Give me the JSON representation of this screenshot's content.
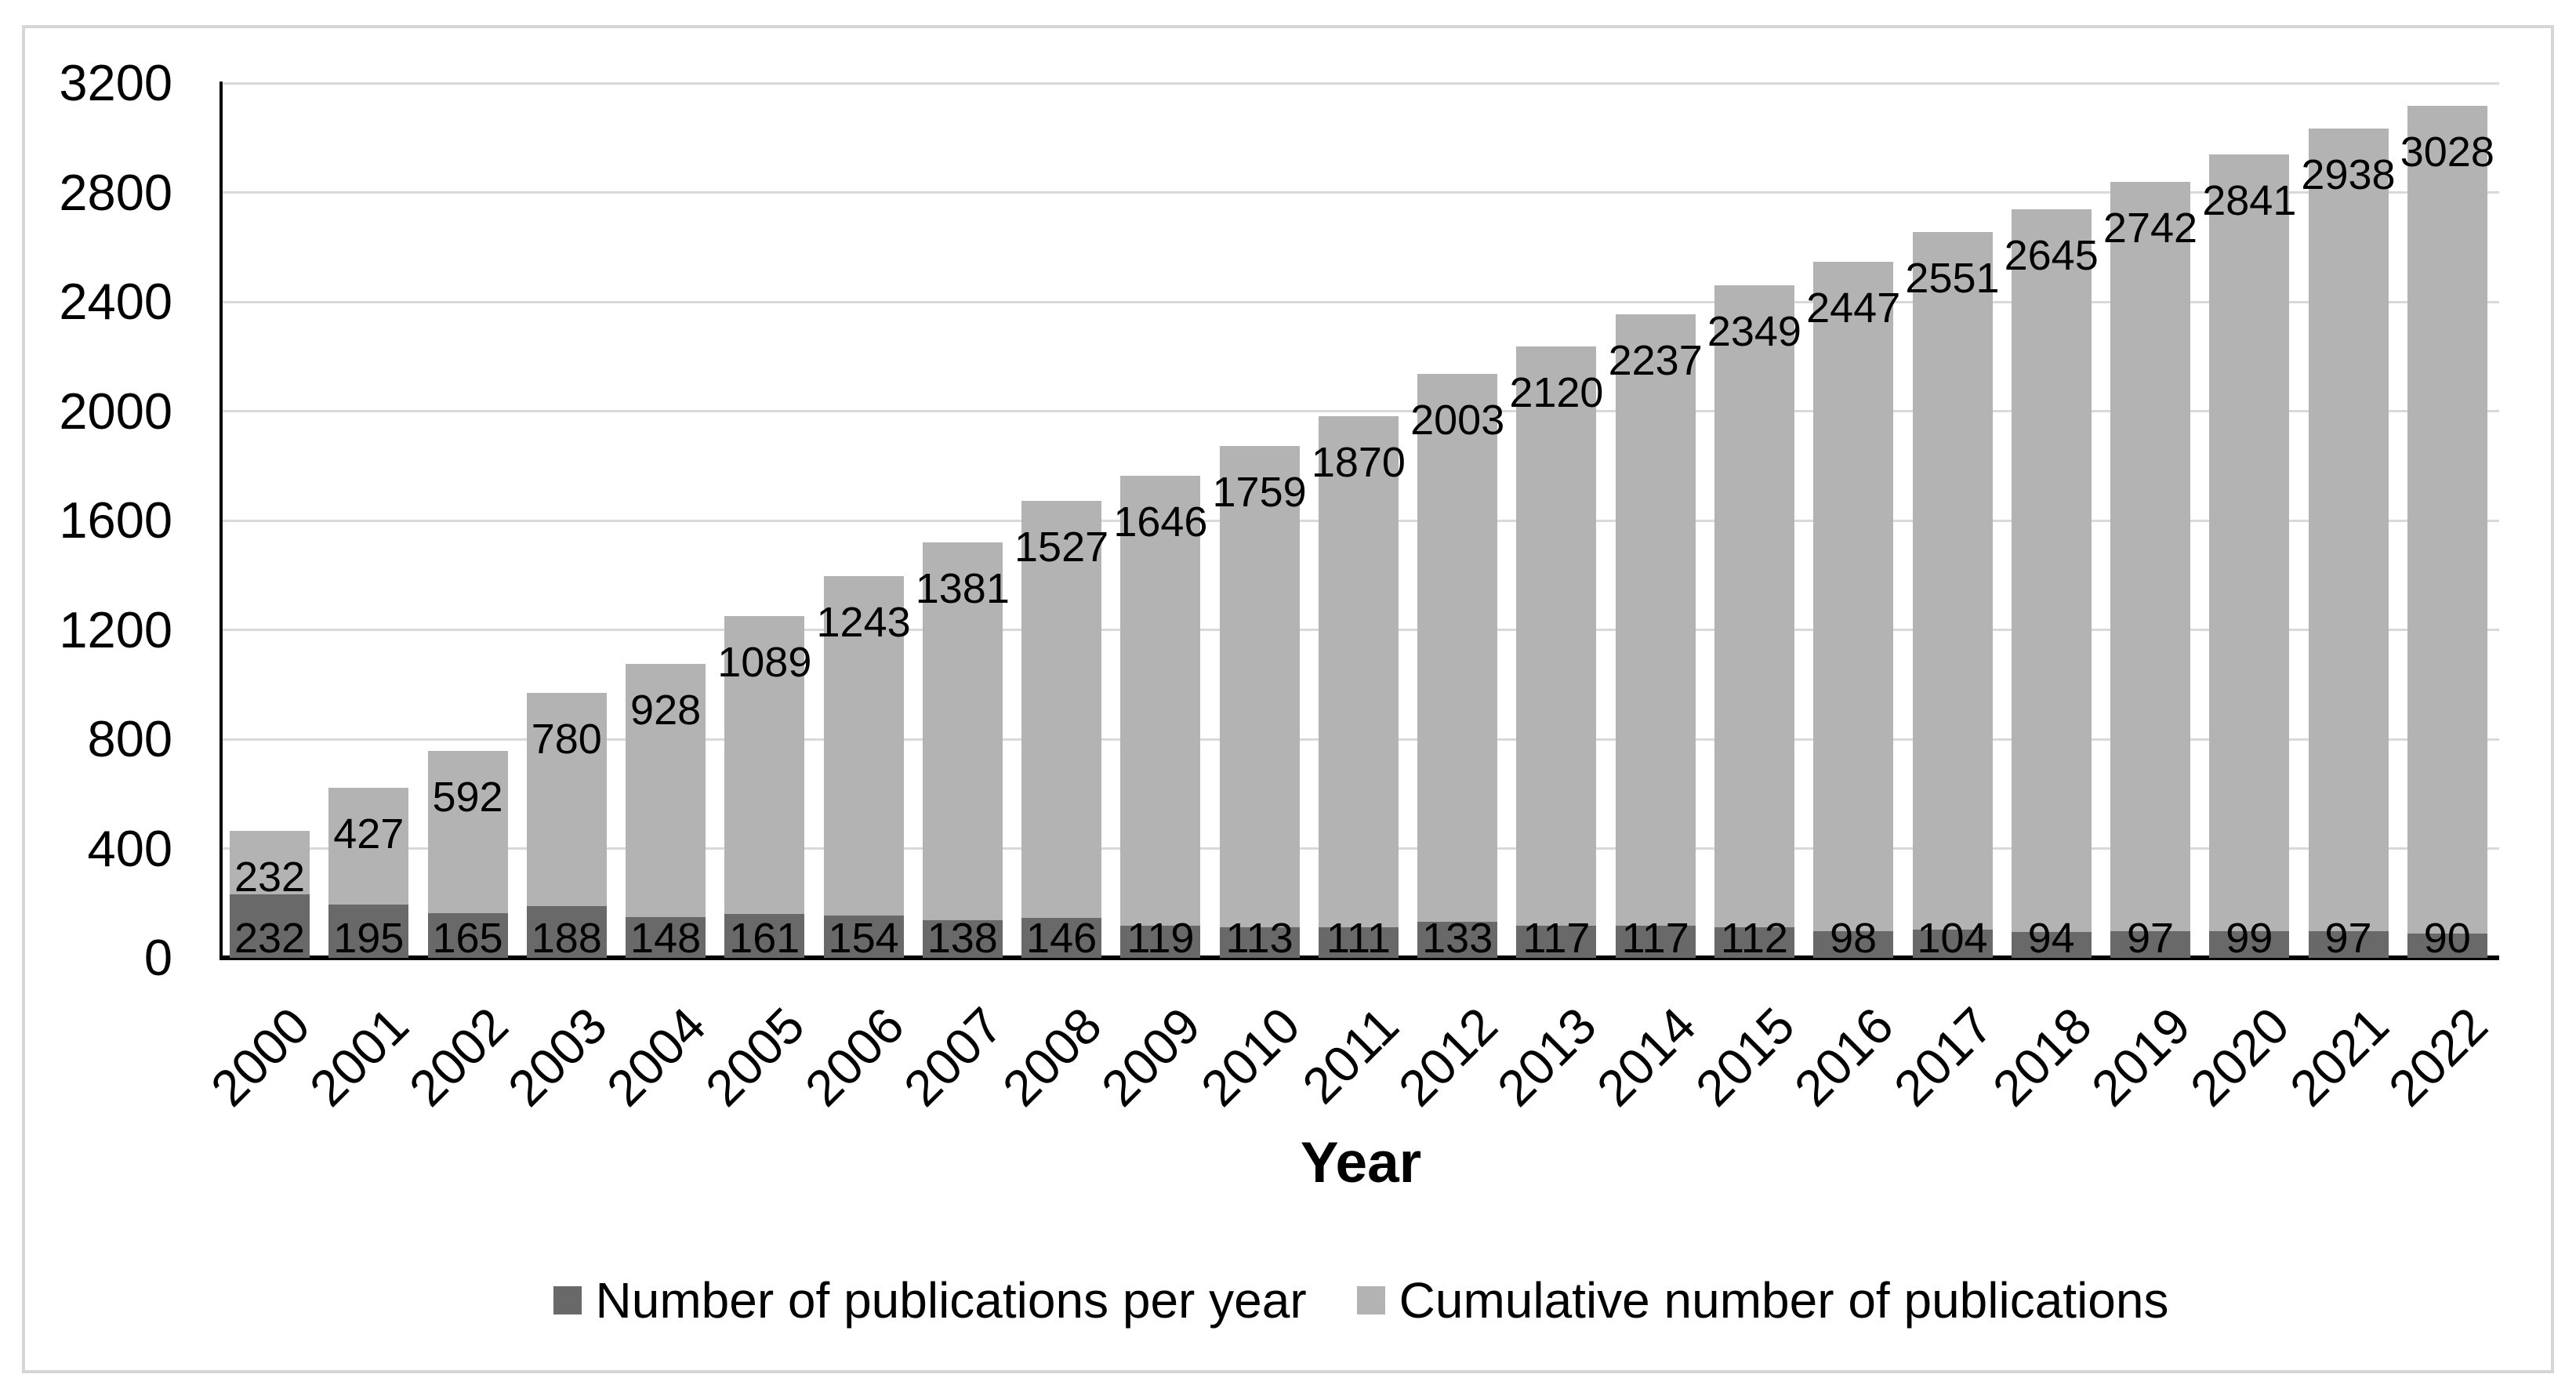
{
  "chart_data": {
    "type": "bar",
    "stacked": true,
    "title": "",
    "xlabel": "Year",
    "ylabel": "",
    "ylim": [
      0,
      3200
    ],
    "ytick_step": 400,
    "grid": true,
    "legend_position": "bottom-center",
    "bar_orientation": "vertical",
    "x_tick_rotation_deg": 45,
    "categories": [
      "2000",
      "2001",
      "2002",
      "2003",
      "2004",
      "2005",
      "2006",
      "2007",
      "2008",
      "2009",
      "2010",
      "2011",
      "2012",
      "2013",
      "2014",
      "2015",
      "2016",
      "2017",
      "2018",
      "2019",
      "2020",
      "2021",
      "2022"
    ],
    "series": [
      {
        "name": "Number of publications per year",
        "color": "#696969",
        "label_position": "inside-base",
        "values": [
          232,
          195,
          165,
          188,
          148,
          161,
          154,
          138,
          146,
          119,
          113,
          111,
          133,
          117,
          117,
          112,
          98,
          104,
          94,
          97,
          99,
          97,
          90
        ]
      },
      {
        "name": "Cumulative number of publications",
        "color": "#b3b3b3",
        "label_position": "inside-end",
        "values": [
          232,
          427,
          592,
          780,
          928,
          1089,
          1243,
          1381,
          1527,
          1646,
          1759,
          1870,
          2003,
          2120,
          2237,
          2349,
          2447,
          2551,
          2645,
          2742,
          2841,
          2938,
          3028
        ]
      }
    ]
  },
  "colors": {
    "background": "#ffffff",
    "frame_border": "#d6d6d6",
    "gridline": "#d9d9d9",
    "axis_line": "#000000",
    "text": "#000000",
    "bar_dark": "#696969",
    "bar_light": "#b3b3b3"
  }
}
